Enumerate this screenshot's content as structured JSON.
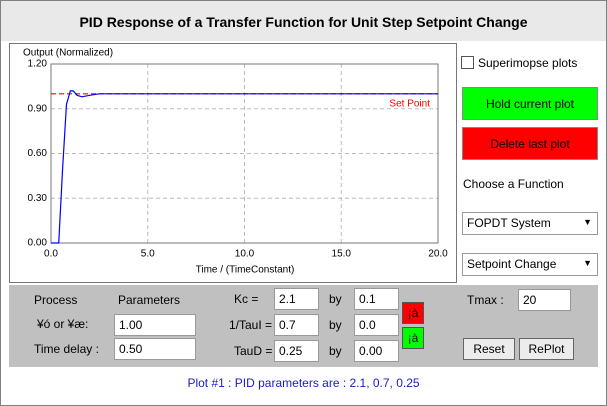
{
  "header": {
    "title": "PID Response of a Transfer Function for Unit Step Setpoint Change"
  },
  "plot": {
    "type": "line",
    "y_label": "Output (Normalized)",
    "x_label": "Time / (TimeConstant)",
    "xlim": [
      0,
      20
    ],
    "ylim": [
      0,
      1.2
    ],
    "xticks": [
      {
        "value": 0,
        "label": "0.0"
      },
      {
        "value": 5,
        "label": "5.0"
      },
      {
        "value": 10,
        "label": "10.0"
      },
      {
        "value": 15,
        "label": "15.0"
      },
      {
        "value": 20,
        "label": "20.0"
      }
    ],
    "yticks": [
      {
        "value": 0,
        "label": "0.00"
      },
      {
        "value": 0.3,
        "label": "0.30"
      },
      {
        "value": 0.6,
        "label": "0.60"
      },
      {
        "value": 0.9,
        "label": "0.90"
      },
      {
        "value": 1.2,
        "label": "1.20"
      }
    ],
    "grid": true,
    "series": [
      {
        "name": "Set Point",
        "color": "#ff0000",
        "x": [
          0,
          20
        ],
        "values": [
          1,
          1
        ]
      },
      {
        "color": "#0000ff",
        "x": [
          0,
          0.4,
          0.6,
          0.8,
          1.0,
          1.15,
          1.35,
          1.6,
          2.0,
          2.5,
          3,
          20
        ],
        "values": [
          0,
          0,
          0.5,
          0.93,
          1.02,
          1.02,
          0.99,
          0.98,
          0.99,
          1.0,
          1.0,
          1.0
        ]
      }
    ]
  },
  "controls": {
    "superimpose": "Superimopse plots",
    "hold": "Hold current plot",
    "delete": "Delete last plot",
    "choose": "Choose a Function",
    "function": "FOPDT System",
    "change": "Setpoint Change"
  },
  "params": {
    "process": "Process",
    "parameters": "Parameters",
    "gain_label": "¥ó or ¥æ:",
    "gain": "1.00",
    "delay_label": "Time delay :",
    "delay": "0.50",
    "kc_label": "Kc =",
    "kc": "2.1",
    "kc_by": "0.1",
    "ti_label": "1/TauI =",
    "ti": "0.7",
    "ti_by": "0.0",
    "td_label": "TauD =",
    "td": "0.25",
    "td_by": "0.00",
    "by": [
      "by",
      "by",
      "by"
    ],
    "up": "¡à",
    "down": "¡à",
    "tmax_label": "Tmax :",
    "tmax": "20",
    "reset": "Reset",
    "replot": "RePlot"
  },
  "status": "Plot #1 : PID parameters are : 2.1, 0.7, 0.25"
}
